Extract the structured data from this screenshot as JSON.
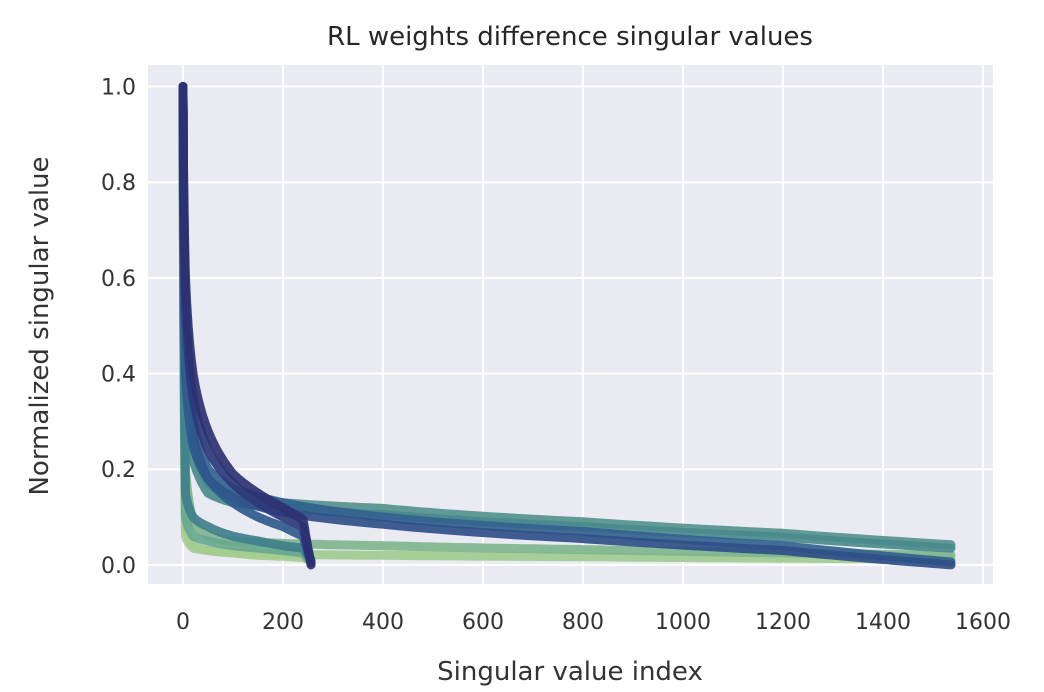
{
  "chart_data": {
    "type": "line",
    "title": "RL weights difference singular values",
    "xlabel": "Singular value index",
    "ylabel": "Normalized singular value",
    "xlim": [
      -70,
      1620
    ],
    "ylim": [
      -0.04,
      1.045
    ],
    "xticks": [
      0,
      200,
      400,
      600,
      800,
      1000,
      1200,
      1400,
      1600
    ],
    "xtick_labels": [
      "0",
      "200",
      "400",
      "600",
      "800",
      "1000",
      "1200",
      "1400",
      "1600"
    ],
    "yticks": [
      0.0,
      0.2,
      0.4,
      0.6,
      0.8,
      1.0
    ],
    "ytick_labels": [
      "0.0",
      "0.2",
      "0.4",
      "0.6",
      "0.8",
      "1.0"
    ],
    "grid": true,
    "background": "#eaeaf2",
    "grid_color": "#ffffff",
    "legend": "none",
    "colormap": "crest",
    "series": [
      {
        "x": [
          0,
          5,
          20,
          50,
          100,
          200,
          400,
          800,
          1200,
          1536
        ],
        "y": [
          1,
          0.08,
          0.04,
          0.03,
          0.025,
          0.022,
          0.02,
          0.017,
          0.014,
          0.012
        ],
        "color": "#9fcb90"
      },
      {
        "x": [
          0,
          5,
          20,
          50,
          100,
          200,
          400,
          800,
          1200,
          1536
        ],
        "y": [
          1,
          0.2,
          0.09,
          0.06,
          0.05,
          0.045,
          0.04,
          0.032,
          0.025,
          0.02
        ],
        "color": "#7fb58e"
      },
      {
        "x": [
          0,
          5,
          20,
          50,
          100,
          200,
          400,
          800,
          1200,
          1536
        ],
        "y": [
          1,
          0.45,
          0.25,
          0.17,
          0.145,
          0.13,
          0.118,
          0.09,
          0.066,
          0.042
        ],
        "color": "#55938d"
      },
      {
        "x": [
          0,
          5,
          20,
          50,
          100,
          200,
          400,
          800,
          1200,
          1536
        ],
        "y": [
          1,
          0.4,
          0.22,
          0.15,
          0.13,
          0.12,
          0.105,
          0.08,
          0.058,
          0.035
        ],
        "color": "#4a8a8c"
      },
      {
        "x": [
          0,
          5,
          20,
          50,
          100,
          200,
          400,
          800,
          1200,
          1536
        ],
        "y": [
          1,
          0.5,
          0.3,
          0.2,
          0.16,
          0.13,
          0.1,
          0.07,
          0.04,
          0.006
        ],
        "color": "#32628f"
      },
      {
        "x": [
          0,
          5,
          20,
          50,
          100,
          200,
          400,
          800,
          1200,
          1536
        ],
        "y": [
          1,
          0.45,
          0.27,
          0.18,
          0.14,
          0.11,
          0.085,
          0.055,
          0.03,
          0.0
        ],
        "color": "#2f4f88"
      },
      {
        "x": [
          0,
          5,
          20,
          50,
          100,
          150,
          200,
          240,
          256
        ],
        "y": [
          1,
          0.06,
          0.035,
          0.03,
          0.025,
          0.02,
          0.018,
          0.015,
          0.01
        ],
        "color": "#a5cd90"
      },
      {
        "x": [
          0,
          5,
          20,
          50,
          100,
          150,
          200,
          240,
          256
        ],
        "y": [
          1,
          0.1,
          0.06,
          0.05,
          0.04,
          0.035,
          0.03,
          0.025,
          0.005
        ],
        "color": "#68a88e"
      },
      {
        "x": [
          0,
          5,
          20,
          50,
          100,
          150,
          200,
          240,
          256
        ],
        "y": [
          1,
          0.15,
          0.1,
          0.08,
          0.06,
          0.05,
          0.04,
          0.035,
          0.01
        ],
        "color": "#3f7f8c"
      },
      {
        "x": [
          0,
          5,
          20,
          50,
          100,
          150,
          200,
          240,
          256
        ],
        "y": [
          1,
          0.4,
          0.25,
          0.18,
          0.13,
          0.1,
          0.08,
          0.06,
          0.005
        ],
        "color": "#2f5a8c"
      },
      {
        "x": [
          0,
          5,
          20,
          50,
          100,
          150,
          200,
          240,
          256
        ],
        "y": [
          1,
          0.55,
          0.35,
          0.24,
          0.17,
          0.13,
          0.1,
          0.08,
          0.005
        ],
        "color": "#2c3a7a"
      },
      {
        "x": [
          0,
          5,
          20,
          50,
          100,
          150,
          200,
          240,
          256
        ],
        "y": [
          1,
          0.6,
          0.4,
          0.28,
          0.19,
          0.15,
          0.12,
          0.095,
          0.0
        ],
        "color": "#2c3172"
      }
    ]
  }
}
